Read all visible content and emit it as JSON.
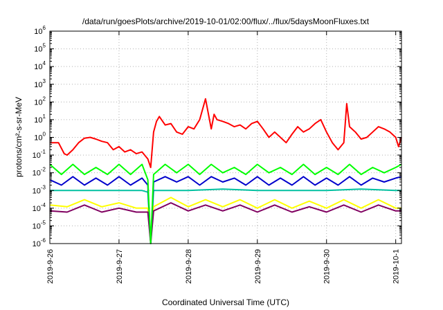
{
  "chart_data": {
    "type": "line",
    "title": "/data/run/goesPlots/archive/2019-10-01/02:00/flux/../flux/5daysMoonFluxes.txt",
    "xlabel": "Coordinated Universal Time (UTC)",
    "ylabel": "protons/cm²-s-sr-MeV",
    "y_scale": "log",
    "ylim": [
      1e-06,
      1000000.0
    ],
    "y_ticks": [
      {
        "base": "10",
        "exp": "-6"
      },
      {
        "base": "10",
        "exp": "-5"
      },
      {
        "base": "10",
        "exp": "-4"
      },
      {
        "base": "10",
        "exp": "-3"
      },
      {
        "base": "10",
        "exp": "-2"
      },
      {
        "base": "10",
        "exp": "-1"
      },
      {
        "base": "10",
        "exp": "0"
      },
      {
        "base": "10",
        "exp": "1"
      },
      {
        "base": "10",
        "exp": "2"
      },
      {
        "base": "10",
        "exp": "3"
      },
      {
        "base": "10",
        "exp": "4"
      },
      {
        "base": "10",
        "exp": "5"
      },
      {
        "base": "10",
        "exp": "6"
      }
    ],
    "x_range": [
      "2019-09-26T00:00",
      "2019-10-01T02:00"
    ],
    "x_ticks": [
      "2019-9-26",
      "2019-9-27",
      "2019-9-28",
      "2019-9-29",
      "2019-9-30",
      "2019-10-1"
    ],
    "grid": true,
    "series": [
      {
        "color": "#ff0000",
        "x": [
          "2019-09-26T00:00",
          "2019-09-26T03:00",
          "2019-09-26T05:00",
          "2019-09-26T06:00",
          "2019-09-26T08:00",
          "2019-09-26T10:00",
          "2019-09-26T12:00",
          "2019-09-26T14:00",
          "2019-09-26T16:00",
          "2019-09-26T18:00",
          "2019-09-26T20:00",
          "2019-09-26T22:00",
          "2019-09-27T00:00",
          "2019-09-27T02:00",
          "2019-09-27T04:00",
          "2019-09-27T06:00",
          "2019-09-27T08:00",
          "2019-09-27T10:00",
          "2019-09-27T11:00",
          "2019-09-27T12:00",
          "2019-09-27T13:00",
          "2019-09-27T14:00",
          "2019-09-27T16:00",
          "2019-09-27T18:00",
          "2019-09-27T20:00",
          "2019-09-27T22:00",
          "2019-09-28T00:00",
          "2019-09-28T02:00",
          "2019-09-28T04:00",
          "2019-09-28T06:00",
          "2019-09-28T08:00",
          "2019-09-28T09:00",
          "2019-09-28T10:00",
          "2019-09-28T12:00",
          "2019-09-28T14:00",
          "2019-09-28T16:00",
          "2019-09-28T18:00",
          "2019-09-28T20:00",
          "2019-09-28T22:00",
          "2019-09-29T00:00",
          "2019-09-29T02:00",
          "2019-09-29T04:00",
          "2019-09-29T06:00",
          "2019-09-29T08:00",
          "2019-09-29T10:00",
          "2019-09-29T12:00",
          "2019-09-29T14:00",
          "2019-09-29T16:00",
          "2019-09-29T18:00",
          "2019-09-29T20:00",
          "2019-09-29T22:00",
          "2019-09-30T00:00",
          "2019-09-30T02:00",
          "2019-09-30T04:00",
          "2019-09-30T06:00",
          "2019-09-30T07:00",
          "2019-09-30T08:00",
          "2019-09-30T10:00",
          "2019-09-30T12:00",
          "2019-09-30T14:00",
          "2019-09-30T16:00",
          "2019-09-30T18:00",
          "2019-09-30T20:00",
          "2019-09-30T22:00",
          "2019-10-01T00:00",
          "2019-10-01T01:00",
          "2019-10-01T02:00"
        ],
        "y": [
          0.5,
          0.5,
          0.12,
          0.1,
          0.2,
          0.5,
          0.9,
          1.0,
          0.8,
          0.6,
          0.5,
          0.2,
          0.3,
          0.15,
          0.2,
          0.12,
          0.15,
          0.06,
          0.02,
          2,
          8,
          15,
          5,
          6,
          2,
          1.5,
          4,
          3,
          10,
          150,
          3,
          20,
          10,
          8,
          6,
          4,
          5,
          3,
          6,
          8,
          3,
          1,
          2,
          1,
          0.5,
          1.5,
          4,
          2,
          3,
          6,
          10,
          2,
          0.5,
          0.2,
          0.5,
          80,
          4,
          2,
          0.8,
          1,
          2,
          4,
          3,
          2,
          1,
          0.3,
          1
        ]
      },
      {
        "color": "#00ff00",
        "x": [
          "2019-09-26T00:00",
          "2019-09-26T04:00",
          "2019-09-26T08:00",
          "2019-09-26T12:00",
          "2019-09-26T16:00",
          "2019-09-26T20:00",
          "2019-09-27T00:00",
          "2019-09-27T04:00",
          "2019-09-27T08:00",
          "2019-09-27T10:00",
          "2019-09-27T11:00",
          "2019-09-27T12:00",
          "2019-09-27T16:00",
          "2019-09-27T20:00",
          "2019-09-28T00:00",
          "2019-09-28T04:00",
          "2019-09-28T08:00",
          "2019-09-28T12:00",
          "2019-09-28T16:00",
          "2019-09-28T20:00",
          "2019-09-29T00:00",
          "2019-09-29T04:00",
          "2019-09-29T08:00",
          "2019-09-29T12:00",
          "2019-09-29T16:00",
          "2019-09-29T20:00",
          "2019-09-30T00:00",
          "2019-09-30T04:00",
          "2019-09-30T08:00",
          "2019-09-30T12:00",
          "2019-09-30T16:00",
          "2019-09-30T20:00",
          "2019-10-01T00:00",
          "2019-10-01T02:00"
        ],
        "y": [
          0.03,
          0.008,
          0.03,
          0.008,
          0.02,
          0.008,
          0.03,
          0.008,
          0.03,
          0.004,
          5e-07,
          0.008,
          0.03,
          0.01,
          0.03,
          0.008,
          0.03,
          0.01,
          0.02,
          0.008,
          0.03,
          0.01,
          0.02,
          0.008,
          0.03,
          0.008,
          0.02,
          0.008,
          0.03,
          0.008,
          0.02,
          0.01,
          0.02,
          0.03
        ]
      },
      {
        "color": "#0000cc",
        "x": [
          "2019-09-26T00:00",
          "2019-09-26T04:00",
          "2019-09-26T08:00",
          "2019-09-26T12:00",
          "2019-09-26T16:00",
          "2019-09-26T20:00",
          "2019-09-27T00:00",
          "2019-09-27T04:00",
          "2019-09-27T08:00",
          "2019-09-27T10:00",
          "2019-09-27T11:00",
          "2019-09-27T12:00",
          "2019-09-27T16:00",
          "2019-09-27T20:00",
          "2019-09-28T00:00",
          "2019-09-28T04:00",
          "2019-09-28T08:00",
          "2019-09-28T12:00",
          "2019-09-28T16:00",
          "2019-09-28T20:00",
          "2019-09-29T00:00",
          "2019-09-29T04:00",
          "2019-09-29T08:00",
          "2019-09-29T12:00",
          "2019-09-29T16:00",
          "2019-09-29T20:00",
          "2019-09-30T00:00",
          "2019-09-30T04:00",
          "2019-09-30T08:00",
          "2019-09-30T12:00",
          "2019-09-30T16:00",
          "2019-09-30T20:00",
          "2019-10-01T00:00",
          "2019-10-01T02:00"
        ],
        "y": [
          0.004,
          0.002,
          0.006,
          0.002,
          0.005,
          0.002,
          0.006,
          0.002,
          0.005,
          0.002,
          1e-06,
          0.003,
          0.006,
          0.003,
          0.006,
          0.002,
          0.006,
          0.003,
          0.005,
          0.002,
          0.006,
          0.002,
          0.005,
          0.002,
          0.006,
          0.002,
          0.005,
          0.002,
          0.006,
          0.002,
          0.005,
          0.003,
          0.005,
          0.006
        ]
      },
      {
        "color": "#00c0a0",
        "x": [
          "2019-09-26T00:00",
          "2019-09-26T12:00",
          "2019-09-27T00:00",
          "2019-09-27T08:00",
          "2019-09-27T10:00",
          "2019-09-27T11:00",
          "2019-09-27T12:00",
          "2019-09-28T00:00",
          "2019-09-28T12:00",
          "2019-09-29T00:00",
          "2019-09-29T12:00",
          "2019-09-30T00:00",
          "2019-09-30T12:00",
          "2019-10-01T00:00",
          "2019-10-01T02:00"
        ],
        "y": [
          0.001,
          0.001,
          0.001,
          0.001,
          0.0008,
          1e-06,
          0.001,
          0.001,
          0.0012,
          0.001,
          0.001,
          0.001,
          0.0012,
          0.001,
          0.001
        ]
      },
      {
        "color": "#ffff00",
        "x": [
          "2019-09-26T00:00",
          "2019-09-26T06:00",
          "2019-09-26T12:00",
          "2019-09-26T18:00",
          "2019-09-27T00:00",
          "2019-09-27T06:00",
          "2019-09-27T10:00",
          "2019-09-27T11:00",
          "2019-09-27T12:00",
          "2019-09-27T18:00",
          "2019-09-28T00:00",
          "2019-09-28T06:00",
          "2019-09-28T12:00",
          "2019-09-28T18:00",
          "2019-09-29T00:00",
          "2019-09-29T06:00",
          "2019-09-29T12:00",
          "2019-09-29T18:00",
          "2019-09-30T00:00",
          "2019-09-30T06:00",
          "2019-09-30T12:00",
          "2019-09-30T18:00",
          "2019-10-01T00:00",
          "2019-10-01T02:00"
        ],
        "y": [
          0.00015,
          0.00012,
          0.0003,
          0.00012,
          0.0002,
          0.0001,
          0.0001,
          1e-06,
          0.00012,
          0.0004,
          0.00012,
          0.0003,
          0.00012,
          0.0003,
          0.0001,
          0.0003,
          0.0001,
          0.00025,
          0.0001,
          0.0003,
          0.0001,
          0.0003,
          0.0001,
          0.0001
        ]
      },
      {
        "color": "#800060",
        "x": [
          "2019-09-26T00:00",
          "2019-09-26T06:00",
          "2019-09-26T12:00",
          "2019-09-26T18:00",
          "2019-09-27T00:00",
          "2019-09-27T06:00",
          "2019-09-27T10:00",
          "2019-09-27T11:00",
          "2019-09-27T12:00",
          "2019-09-27T18:00",
          "2019-09-28T00:00",
          "2019-09-28T06:00",
          "2019-09-28T12:00",
          "2019-09-28T18:00",
          "2019-09-29T00:00",
          "2019-09-29T06:00",
          "2019-09-29T12:00",
          "2019-09-29T18:00",
          "2019-09-30T00:00",
          "2019-09-30T06:00",
          "2019-09-30T12:00",
          "2019-09-30T18:00",
          "2019-10-01T00:00",
          "2019-10-01T02:00"
        ],
        "y": [
          7e-05,
          6e-05,
          0.00015,
          6e-05,
          0.0001,
          6e-05,
          6e-05,
          1e-06,
          7e-05,
          0.0002,
          7e-05,
          0.00015,
          7e-05,
          0.00015,
          6e-05,
          0.00015,
          6e-05,
          0.00012,
          6e-05,
          0.00015,
          6e-05,
          0.00015,
          7e-05,
          7e-05
        ]
      }
    ]
  }
}
